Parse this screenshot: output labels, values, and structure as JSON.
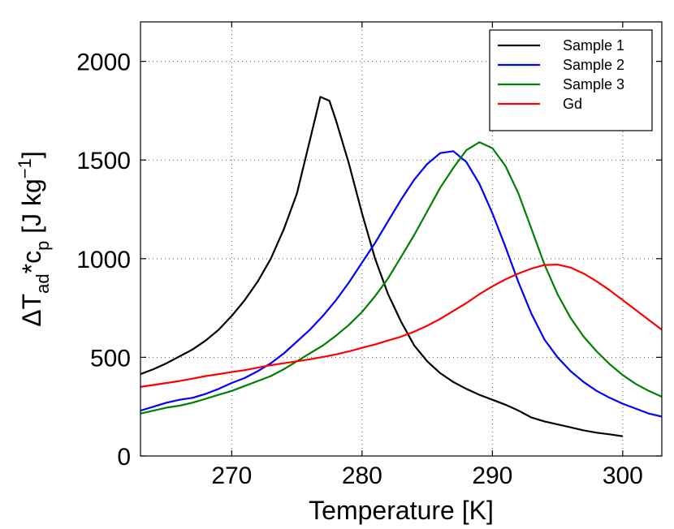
{
  "chart_data": {
    "type": "line",
    "title": "",
    "xlabel": "Temperature [K]",
    "ylabel": {
      "main": "ΔT",
      "sub1": "ad",
      "mid": "*c",
      "sub2": "p",
      "units": " [J kg",
      "sup": "−1",
      "end": "]"
    },
    "xlim": [
      263,
      303
    ],
    "ylim": [
      0,
      2200
    ],
    "xticks": [
      270,
      280,
      290,
      300
    ],
    "yticks": [
      0,
      500,
      1000,
      1500,
      2000
    ],
    "xtick_labels": [
      "270",
      "280",
      "290",
      "300"
    ],
    "ytick_labels": [
      "0",
      "500",
      "1000",
      "1500",
      "2000"
    ],
    "grid": true,
    "legend_position": "top-right",
    "series": [
      {
        "name": "Sample 1",
        "color": "#000000",
        "points": [
          [
            263,
            415
          ],
          [
            264,
            440
          ],
          [
            265,
            470
          ],
          [
            266,
            505
          ],
          [
            267,
            540
          ],
          [
            268,
            585
          ],
          [
            269,
            640
          ],
          [
            270,
            710
          ],
          [
            271,
            790
          ],
          [
            272,
            885
          ],
          [
            273,
            1000
          ],
          [
            274,
            1150
          ],
          [
            275,
            1330
          ],
          [
            276,
            1600
          ],
          [
            276.8,
            1820
          ],
          [
            277.5,
            1800
          ],
          [
            278,
            1700
          ],
          [
            279,
            1480
          ],
          [
            280,
            1230
          ],
          [
            281,
            1000
          ],
          [
            282,
            820
          ],
          [
            283,
            680
          ],
          [
            284,
            560
          ],
          [
            285,
            480
          ],
          [
            286,
            420
          ],
          [
            287,
            375
          ],
          [
            288,
            340
          ],
          [
            289,
            310
          ],
          [
            290,
            285
          ],
          [
            291,
            260
          ],
          [
            292,
            230
          ],
          [
            293,
            195
          ],
          [
            294,
            175
          ],
          [
            295,
            160
          ],
          [
            296,
            145
          ],
          [
            297,
            130
          ],
          [
            298,
            118
          ],
          [
            299,
            110
          ],
          [
            300,
            100
          ]
        ]
      },
      {
        "name": "Sample 2",
        "color": "#0000ff",
        "points": [
          [
            263,
            230
          ],
          [
            264,
            250
          ],
          [
            265,
            270
          ],
          [
            266,
            285
          ],
          [
            267,
            295
          ],
          [
            268,
            315
          ],
          [
            269,
            340
          ],
          [
            270,
            370
          ],
          [
            271,
            395
          ],
          [
            272,
            430
          ],
          [
            273,
            470
          ],
          [
            274,
            520
          ],
          [
            275,
            580
          ],
          [
            276,
            640
          ],
          [
            277,
            710
          ],
          [
            278,
            790
          ],
          [
            279,
            880
          ],
          [
            280,
            980
          ],
          [
            281,
            1080
          ],
          [
            282,
            1190
          ],
          [
            283,
            1300
          ],
          [
            284,
            1400
          ],
          [
            285,
            1480
          ],
          [
            286,
            1535
          ],
          [
            287,
            1545
          ],
          [
            288,
            1490
          ],
          [
            289,
            1380
          ],
          [
            290,
            1230
          ],
          [
            291,
            1060
          ],
          [
            292,
            880
          ],
          [
            293,
            720
          ],
          [
            294,
            590
          ],
          [
            295,
            500
          ],
          [
            296,
            430
          ],
          [
            297,
            375
          ],
          [
            298,
            330
          ],
          [
            299,
            295
          ],
          [
            300,
            265
          ],
          [
            301,
            240
          ],
          [
            302,
            215
          ],
          [
            303,
            200
          ]
        ]
      },
      {
        "name": "Sample 3",
        "color": "#008000",
        "points": [
          [
            263,
            215
          ],
          [
            264,
            230
          ],
          [
            265,
            245
          ],
          [
            266,
            255
          ],
          [
            267,
            270
          ],
          [
            268,
            290
          ],
          [
            269,
            310
          ],
          [
            270,
            330
          ],
          [
            271,
            355
          ],
          [
            272,
            380
          ],
          [
            273,
            405
          ],
          [
            274,
            440
          ],
          [
            275,
            480
          ],
          [
            276,
            520
          ],
          [
            277,
            560
          ],
          [
            278,
            610
          ],
          [
            279,
            665
          ],
          [
            280,
            730
          ],
          [
            281,
            810
          ],
          [
            282,
            900
          ],
          [
            283,
            1010
          ],
          [
            284,
            1120
          ],
          [
            285,
            1240
          ],
          [
            286,
            1360
          ],
          [
            287,
            1460
          ],
          [
            288,
            1550
          ],
          [
            289,
            1590
          ],
          [
            290,
            1560
          ],
          [
            291,
            1470
          ],
          [
            292,
            1330
          ],
          [
            293,
            1150
          ],
          [
            294,
            970
          ],
          [
            295,
            820
          ],
          [
            296,
            700
          ],
          [
            297,
            605
          ],
          [
            298,
            530
          ],
          [
            299,
            465
          ],
          [
            300,
            410
          ],
          [
            301,
            365
          ],
          [
            302,
            330
          ],
          [
            303,
            300
          ]
        ]
      },
      {
        "name": "Gd",
        "color": "#ff0000",
        "points": [
          [
            263,
            350
          ],
          [
            264,
            360
          ],
          [
            265,
            370
          ],
          [
            266,
            380
          ],
          [
            267,
            392
          ],
          [
            268,
            405
          ],
          [
            269,
            415
          ],
          [
            270,
            425
          ],
          [
            271,
            435
          ],
          [
            272,
            448
          ],
          [
            273,
            460
          ],
          [
            274,
            470
          ],
          [
            275,
            480
          ],
          [
            276,
            490
          ],
          [
            277,
            502
          ],
          [
            278,
            515
          ],
          [
            279,
            530
          ],
          [
            280,
            548
          ],
          [
            281,
            565
          ],
          [
            282,
            585
          ],
          [
            283,
            605
          ],
          [
            284,
            630
          ],
          [
            285,
            660
          ],
          [
            286,
            695
          ],
          [
            287,
            735
          ],
          [
            288,
            775
          ],
          [
            289,
            820
          ],
          [
            290,
            860
          ],
          [
            291,
            895
          ],
          [
            292,
            925
          ],
          [
            293,
            950
          ],
          [
            294,
            968
          ],
          [
            295,
            970
          ],
          [
            296,
            955
          ],
          [
            297,
            925
          ],
          [
            298,
            885
          ],
          [
            299,
            840
          ],
          [
            300,
            790
          ],
          [
            301,
            740
          ],
          [
            302,
            690
          ],
          [
            303,
            640
          ]
        ]
      }
    ]
  }
}
